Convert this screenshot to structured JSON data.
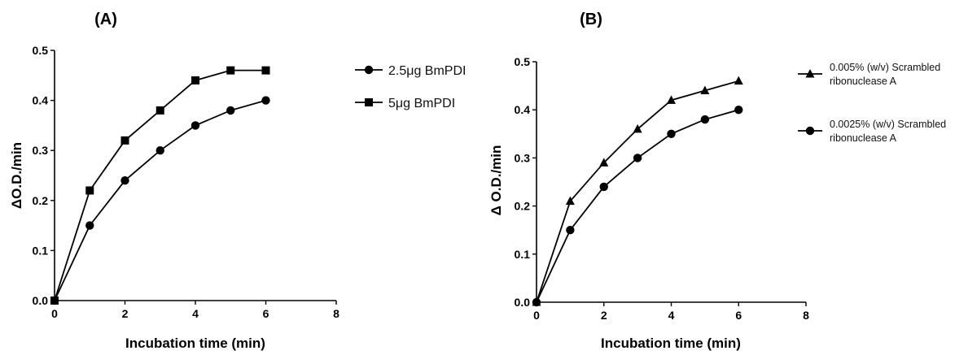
{
  "chart_data": [
    {
      "panel": "(A)",
      "type": "line",
      "xlabel": "Incubation time (min)",
      "ylabel": "ΔO.D./min",
      "xlim": [
        0,
        8
      ],
      "ylim": [
        0,
        0.5
      ],
      "xticks": [
        "0",
        "2",
        "4",
        "6",
        "8"
      ],
      "yticks": [
        "0.0",
        "0.1",
        "0.2",
        "0.3",
        "0.4",
        "0.5"
      ],
      "grid": false,
      "legend_position": "right",
      "series": [
        {
          "name": "2.5μg BmPDI",
          "marker": "circle",
          "x": [
            0,
            1,
            2,
            3,
            4,
            5,
            6
          ],
          "y": [
            0.0,
            0.15,
            0.24,
            0.3,
            0.35,
            0.38,
            0.4
          ]
        },
        {
          "name": "5μg BmPDI",
          "marker": "square",
          "x": [
            0,
            1,
            2,
            3,
            4,
            5,
            6
          ],
          "y": [
            0.0,
            0.22,
            0.32,
            0.38,
            0.44,
            0.46,
            0.46
          ]
        }
      ]
    },
    {
      "panel": "(B)",
      "type": "line",
      "xlabel": "Incubation time (min)",
      "ylabel": "Δ O.D./min",
      "xlim": [
        0,
        8
      ],
      "ylim": [
        0,
        0.5
      ],
      "xticks": [
        "0",
        "2",
        "4",
        "6",
        "8"
      ],
      "yticks": [
        "0.0",
        "0.1",
        "0.2",
        "0.3",
        "0.4",
        "0.5"
      ],
      "grid": false,
      "legend_position": "right",
      "series": [
        {
          "name": "0.005% (w/v)  Scrambled ribonuclease A",
          "name_lines": [
            "0.005% (w/v)  Scrambled",
            "ribonuclease A"
          ],
          "marker": "triangle",
          "x": [
            0,
            1,
            2,
            3,
            4,
            5,
            6
          ],
          "y": [
            0.0,
            0.21,
            0.29,
            0.36,
            0.42,
            0.44,
            0.46
          ]
        },
        {
          "name": "0.0025% (w/v)  Scrambled ribonuclease A",
          "name_lines": [
            "0.0025% (w/v)  Scrambled",
            "ribonuclease A"
          ],
          "marker": "circle",
          "x": [
            0,
            1,
            2,
            3,
            4,
            5,
            6
          ],
          "y": [
            0.0,
            0.15,
            0.24,
            0.3,
            0.35,
            0.38,
            0.4
          ]
        }
      ]
    }
  ]
}
